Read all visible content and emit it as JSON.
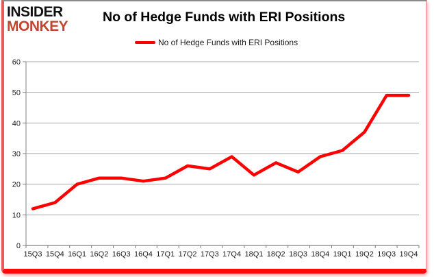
{
  "logo": {
    "line1": "INSIDER",
    "line2": "MONKEY"
  },
  "header": {
    "title": "No of Hedge Funds with ERI Positions"
  },
  "legend": {
    "label": "No of Hedge Funds with ERI Positions"
  },
  "colors": {
    "series": "#ff0000",
    "gridline": "#a6a6a6",
    "axis": "#808080",
    "tick_text": "#1a1a1a",
    "logo_red": "#c2452f",
    "frame_bottom_red": "#fb0a0a",
    "frame_side_pink": "#f2a6a6",
    "frame_top_gray": "#8a8a8a"
  },
  "chart_data": {
    "type": "line",
    "title": "No of Hedge Funds with ERI Positions",
    "categories": [
      "15Q3",
      "15Q4",
      "16Q1",
      "16Q2",
      "16Q3",
      "16Q4",
      "17Q1",
      "17Q2",
      "17Q3",
      "17Q4",
      "18Q1",
      "18Q2",
      "18Q3",
      "18Q4",
      "19Q1",
      "19Q2",
      "19Q3",
      "19Q4"
    ],
    "series": [
      {
        "name": "No of Hedge Funds with ERI Positions",
        "color": "#ff0000",
        "values": [
          12,
          14,
          20,
          22,
          22,
          21,
          22,
          26,
          25,
          29,
          23,
          27,
          24,
          29,
          31,
          37,
          49,
          49
        ]
      }
    ],
    "xlabel": "",
    "ylabel": "",
    "ylim": [
      0,
      60
    ],
    "ytick_interval": 10,
    "yticks": [
      0,
      10,
      20,
      30,
      40,
      50,
      60
    ],
    "grid": true,
    "legend_position": "top"
  }
}
